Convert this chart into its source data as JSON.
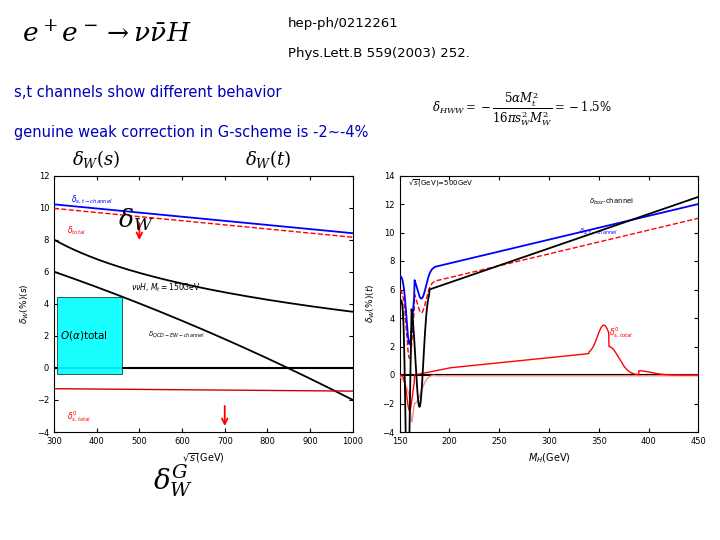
{
  "background_color": "#ffffff",
  "title_ref_line1": "hep-ph/0212261",
  "title_ref_line2": "Phys.Lett.B 559(2003) 252.",
  "reaction": "$e^+e^- \\rightarrow \\nu\\bar{\\nu}H$",
  "text_line1": "s,t channels show different behavior",
  "text_line2": "genuine weak correction in G-scheme is -2∼-4%",
  "formula": "$\\delta_{HWW} = -\\dfrac{5\\alpha M_t^2}{16\\pi s_W^2 M_W^2} = -1.5\\%$",
  "label_s": "$\\delta_W(s)$",
  "label_t": "$\\delta_W(t)$",
  "label_bottom": "$\\delta_W^G$",
  "text_color_blue": "#0000bb",
  "panel_left": {
    "xlim": [
      300,
      1000
    ],
    "ylim": [
      -4,
      12
    ],
    "xlabel": "$\\sqrt{s}$(GeV)",
    "ylabel": "$\\delta_W(\\%)(s)$",
    "xticks": [
      300,
      400,
      500,
      600,
      700,
      800,
      900,
      1000
    ],
    "yticks": [
      -4,
      -2,
      0,
      2,
      4,
      6,
      8,
      10,
      12
    ]
  },
  "panel_right": {
    "xlim": [
      150,
      450
    ],
    "ylim": [
      -4,
      14
    ],
    "xlabel": "$M_H$(GeV)",
    "ylabel": "$\\delta_W(\\%)(t)$",
    "xticks": [
      150,
      200,
      250,
      300,
      350,
      400,
      450
    ],
    "yticks": [
      -4,
      -2,
      0,
      2,
      4,
      6,
      8,
      10,
      12,
      14
    ]
  }
}
